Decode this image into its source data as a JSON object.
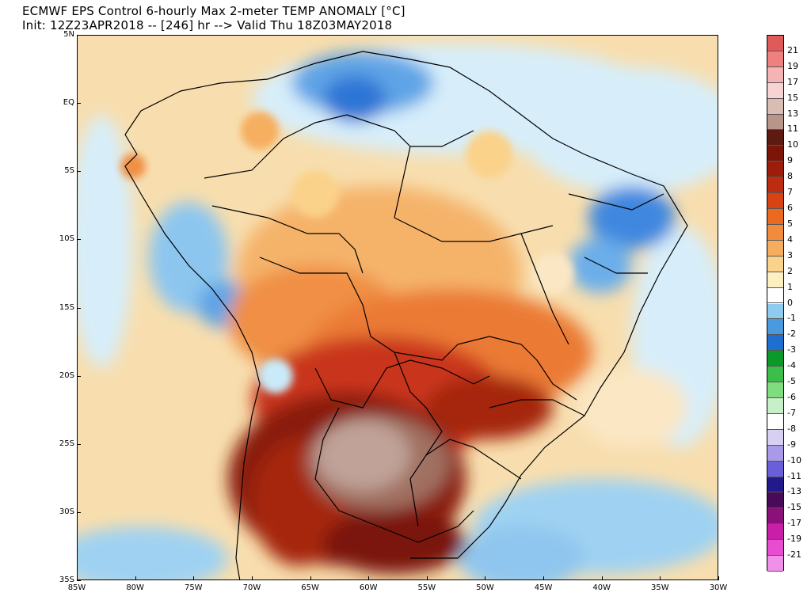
{
  "title": {
    "line1": "ECMWF EPS Control 6-hourly Max 2-meter TEMP ANOMALY [°C]",
    "line2": "Init: 12Z23APR2018 -- [246] hr --> Valid Thu 18Z03MAY2018"
  },
  "map": {
    "lon_range": [
      -85,
      -30
    ],
    "lat_range": [
      -35,
      5
    ],
    "lat_labels": [
      "5N",
      "EQ",
      "5S",
      "10S",
      "15S",
      "20S",
      "25S",
      "30S",
      "35S"
    ],
    "lon_labels": [
      "85W",
      "80W",
      "75W",
      "70W",
      "65W",
      "60W",
      "55W",
      "50W",
      "45W",
      "40W",
      "35W",
      "30W"
    ]
  },
  "colorbar": {
    "labels": [
      "21",
      "19",
      "17",
      "15",
      "13",
      "11",
      "10",
      "9",
      "8",
      "7",
      "6",
      "5",
      "4",
      "3",
      "2",
      "1",
      "0",
      "-1",
      "-2",
      "-3",
      "-4",
      "-5",
      "-6",
      "-7",
      "-8",
      "-9",
      "-10",
      "-11",
      "-13",
      "-15",
      "-17",
      "-19",
      "-21"
    ],
    "colors": [
      "#e05a5a",
      "#f08080",
      "#f6b3b3",
      "#f7d3d3",
      "#d9bdb5",
      "#b8958a",
      "#8c6a5e",
      "#5c1a10",
      "#7a1508",
      "#9c1e0a",
      "#bd2c0e",
      "#d94314",
      "#ea6a22",
      "#f28c3c",
      "#f6ae5e",
      "#fad28a",
      "#fdf0c0",
      "#ffffff",
      "#c9eaf8",
      "#8fcbef",
      "#4a9ae0",
      "#1f6fd0",
      "#0a9a2a",
      "#3cbf4a",
      "#7fdc7f",
      "#c8f0c8",
      "#ffffff",
      "#d8d0f0",
      "#a89ae8",
      "#6a5fd8",
      "#3a33b8",
      "#221a8a",
      "#4a0a5a",
      "#8a107a",
      "#c81ea8",
      "#e84cd0",
      "#f090e8"
    ]
  }
}
